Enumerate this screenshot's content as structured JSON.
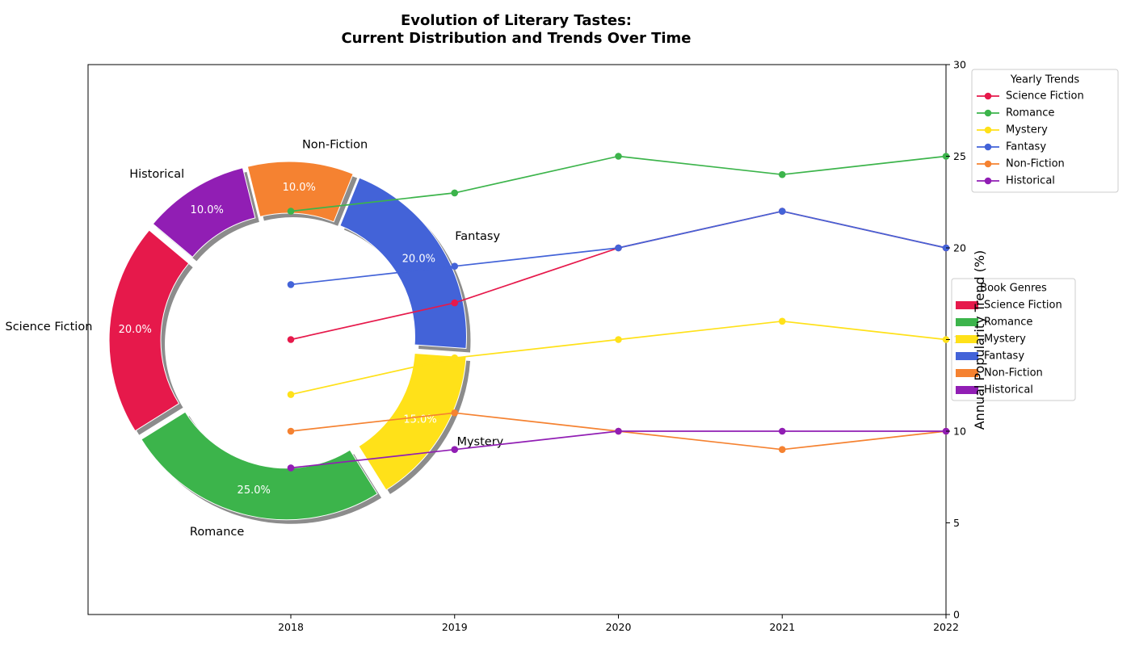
{
  "chart_data": {
    "type": "pie+line",
    "title_line1": "Evolution of Literary Tastes:",
    "title_line2": "Current Distribution and Trends Over Time",
    "donut": {
      "categories": [
        "Science Fiction",
        "Romance",
        "Mystery",
        "Fantasy",
        "Non-Fiction",
        "Historical"
      ],
      "values": [
        20,
        25,
        15,
        20,
        10,
        10
      ],
      "pct_labels": [
        "20.0%",
        "25.0%",
        "15.0%",
        "20.0%",
        "10.0%",
        "10.0%"
      ],
      "colors": [
        "#e6194b",
        "#3cb44b",
        "#ffe119",
        "#4363d8",
        "#f58231",
        "#911eb4"
      ]
    },
    "lines": {
      "x": [
        "2018",
        "2019",
        "2020",
        "2021",
        "2022"
      ],
      "ylabel": "Annual Popularity Trend (%)",
      "ylim": [
        0,
        30
      ],
      "yticks": [
        "0",
        "5",
        "10",
        "15",
        "20",
        "25",
        "30"
      ],
      "series": [
        {
          "name": "Science Fiction",
          "color": "#e6194b",
          "values": [
            15,
            17,
            20,
            22,
            20
          ]
        },
        {
          "name": "Romance",
          "color": "#3cb44b",
          "values": [
            22,
            23,
            25,
            24,
            25
          ]
        },
        {
          "name": "Mystery",
          "color": "#ffe119",
          "values": [
            12,
            14,
            15,
            16,
            15
          ]
        },
        {
          "name": "Fantasy",
          "color": "#4363d8",
          "values": [
            18,
            19,
            20,
            22,
            20
          ]
        },
        {
          "name": "Non-Fiction",
          "color": "#f58231",
          "values": [
            10,
            11,
            10,
            9,
            10
          ]
        },
        {
          "name": "Historical",
          "color": "#911eb4",
          "values": [
            8,
            9,
            10,
            10,
            10
          ]
        }
      ]
    },
    "legends": {
      "trends_title": "Yearly Trends",
      "genres_title": "Book Genres"
    }
  }
}
